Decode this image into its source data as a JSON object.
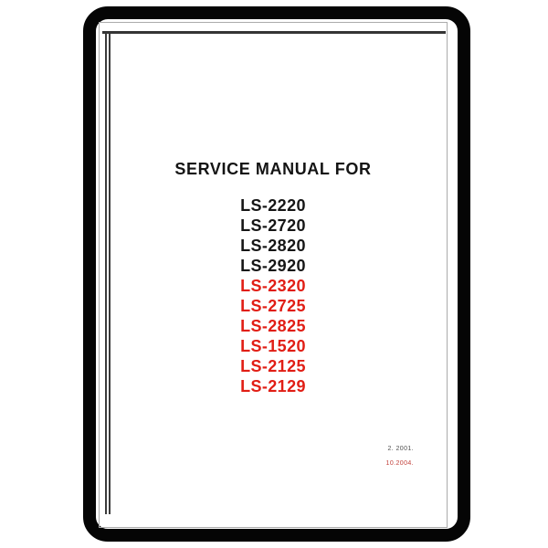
{
  "title": "SERVICE MANUAL FOR",
  "models": [
    {
      "label": "LS-2220",
      "color": "#161616"
    },
    {
      "label": "LS-2720",
      "color": "#161616"
    },
    {
      "label": "LS-2820",
      "color": "#161616"
    },
    {
      "label": "LS-2920",
      "color": "#161616"
    },
    {
      "label": "LS-2320",
      "color": "#e11e15"
    },
    {
      "label": "LS-2725",
      "color": "#e11e15"
    },
    {
      "label": "LS-2825",
      "color": "#e11e15"
    },
    {
      "label": "LS-1520",
      "color": "#e11e15"
    },
    {
      "label": "LS-2125",
      "color": "#e11e15"
    },
    {
      "label": "LS-2129",
      "color": "#e11e15"
    }
  ],
  "revisions": [
    {
      "label": "2. 2001.",
      "color": "#515151"
    },
    {
      "label": "10.2004.",
      "color": "#c2403a"
    }
  ],
  "colors": {
    "frame_black": "#050505",
    "page_outline_gray": "#ababab",
    "model_black": "#161616",
    "model_red": "#e11e15"
  }
}
